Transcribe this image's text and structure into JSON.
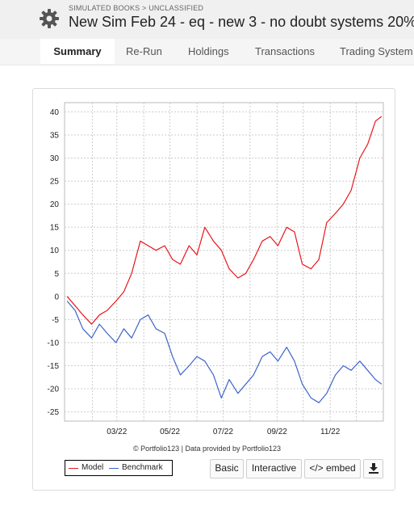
{
  "header": {
    "breadcrumb": "SIMULATED BOOKS > UNCLASSIFIED",
    "title": "New Sim Feb 24 - eq - new 3 - no doubt systems 20%",
    "icon": "gear-icon"
  },
  "tabs": [
    {
      "label": "Summary",
      "active": true
    },
    {
      "label": "Re-Run",
      "active": false
    },
    {
      "label": "Holdings",
      "active": false
    },
    {
      "label": "Transactions",
      "active": false
    },
    {
      "label": "Trading System",
      "active": false
    }
  ],
  "chart_data": {
    "type": "line",
    "title": "",
    "xlabel": "",
    "ylabel": "",
    "ylim": [
      -27,
      42
    ],
    "x_ticks": [
      "03/22",
      "05/22",
      "07/22",
      "09/22",
      "11/22"
    ],
    "y_ticks": [
      40,
      35,
      30,
      25,
      20,
      15,
      10,
      5,
      0,
      -5,
      -10,
      -15,
      -20,
      -25
    ],
    "grid": true,
    "series": [
      {
        "name": "Model",
        "color": "#e8161b",
        "x": [
          "01/03/22",
          "01/12/22",
          "01/21/22",
          "01/31/22",
          "02/09/22",
          "02/18/22",
          "02/28/22",
          "03/09/22",
          "03/18/22",
          "03/28/22",
          "04/06/22",
          "04/15/22",
          "04/25/22",
          "05/04/22",
          "05/13/22",
          "05/23/22",
          "06/01/22",
          "06/10/22",
          "06/20/22",
          "06/29/22",
          "07/08/22",
          "07/18/22",
          "07/27/22",
          "08/05/22",
          "08/15/22",
          "08/24/22",
          "09/02/22",
          "09/12/22",
          "09/21/22",
          "09/30/22",
          "10/10/22",
          "10/19/22",
          "10/28/22",
          "11/07/22",
          "11/16/22",
          "11/25/22",
          "12/05/22",
          "12/14/22",
          "12/23/22",
          "12/30/22"
        ],
        "values": [
          0,
          -2,
          -4,
          -6,
          -4,
          -3,
          -1,
          1,
          5,
          12,
          11,
          10,
          11,
          8,
          7,
          11,
          9,
          15,
          12,
          10,
          6,
          4,
          5,
          8,
          12,
          13,
          11,
          15,
          14,
          7,
          6,
          8,
          16,
          18,
          20,
          23,
          30,
          33,
          38,
          39
        ]
      },
      {
        "name": "Benchmark",
        "color": "#3d64c9",
        "x": [
          "01/03/22",
          "01/12/22",
          "01/21/22",
          "01/31/22",
          "02/09/22",
          "02/18/22",
          "02/28/22",
          "03/09/22",
          "03/18/22",
          "03/28/22",
          "04/06/22",
          "04/15/22",
          "04/25/22",
          "05/04/22",
          "05/13/22",
          "05/23/22",
          "06/01/22",
          "06/10/22",
          "06/20/22",
          "06/29/22",
          "07/08/22",
          "07/18/22",
          "07/27/22",
          "08/05/22",
          "08/15/22",
          "08/24/22",
          "09/02/22",
          "09/12/22",
          "09/21/22",
          "09/30/22",
          "10/10/22",
          "10/19/22",
          "10/28/22",
          "11/07/22",
          "11/16/22",
          "11/25/22",
          "12/05/22",
          "12/14/22",
          "12/23/22",
          "12/30/22"
        ],
        "values": [
          -1,
          -3,
          -7,
          -9,
          -6,
          -8,
          -10,
          -7,
          -9,
          -5,
          -4,
          -7,
          -8,
          -13,
          -17,
          -15,
          -13,
          -14,
          -17,
          -22,
          -18,
          -21,
          -19,
          -17,
          -13,
          -12,
          -14,
          -11,
          -14,
          -19,
          -22,
          -23,
          -21,
          -17,
          -15,
          -16,
          -14,
          -16,
          -18,
          -19
        ]
      }
    ]
  },
  "credit": "© Portfolio123 | Data provided by Portfolio123",
  "legend": {
    "model": "Model",
    "benchmark": "Benchmark"
  },
  "buttons": {
    "basic": "Basic",
    "interactive": "Interactive",
    "embed": "</> embed",
    "download_icon": "download-icon"
  }
}
